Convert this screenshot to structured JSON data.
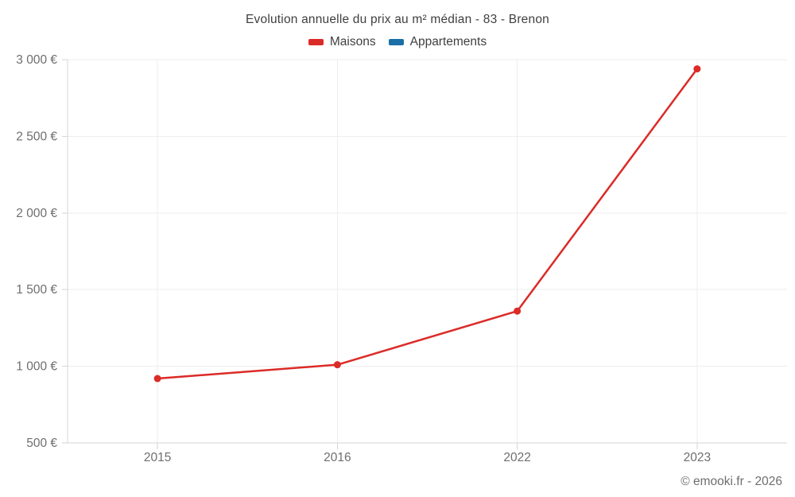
{
  "title": "Evolution annuelle du prix au m² médian - 83 - Brenon",
  "copyright": "© emooki.fr - 2026",
  "legend": {
    "items": [
      {
        "label": "Maisons",
        "color": "#db2b27"
      },
      {
        "label": "Appartements",
        "color": "#1a6fa6"
      }
    ]
  },
  "colors": {
    "maisons": "#db2b27",
    "appartements": "#1a6fa6",
    "grid": "#ededed",
    "axis": "#d6d6d6",
    "tick_label": "#6e6e6e",
    "title_text": "#3f3f3f"
  },
  "chart_data": {
    "type": "line",
    "title": "Evolution annuelle du prix au m² médian - 83 - Brenon",
    "categories": [
      "2015",
      "2016",
      "2022",
      "2023"
    ],
    "series": [
      {
        "name": "Maisons",
        "color": "#db2b27",
        "values": [
          920,
          1010,
          1360,
          2940
        ]
      },
      {
        "name": "Appartements",
        "color": "#1a6fa6",
        "values": []
      }
    ],
    "xlabel": "",
    "ylabel": "",
    "ylim": [
      500,
      3000
    ],
    "yticks": [
      500,
      1000,
      1500,
      2000,
      2500,
      3000
    ],
    "ytick_labels": [
      "500 €",
      "1 000 €",
      "1 500 €",
      "2 000 €",
      "2 500 €",
      "3 000 €"
    ],
    "grid": true,
    "legend_position": "top",
    "marker": "circle"
  }
}
